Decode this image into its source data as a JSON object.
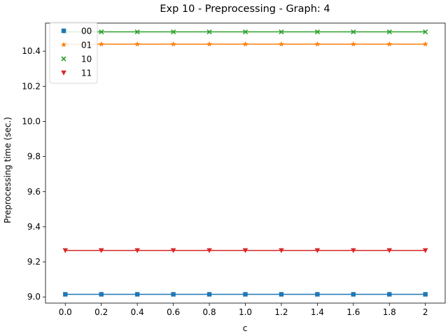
{
  "chart_data": {
    "type": "line",
    "title": "Exp 10 - Preprocessing - Graph: 4",
    "xlabel": "c",
    "ylabel": "Preprocessing time (sec.)",
    "x": [
      0.0,
      0.2,
      0.4,
      0.6,
      0.8,
      1.0,
      1.2,
      1.4,
      1.6,
      1.8,
      2.0
    ],
    "xticks": [
      0.0,
      0.2,
      0.4,
      0.6,
      0.8,
      1.0,
      1.2,
      1.4,
      1.6,
      1.8,
      2.0
    ],
    "xtick_labels": [
      "0.0",
      "0.2",
      "0.4",
      "0.6",
      "0.8",
      "1.0",
      "1.2",
      "1.4",
      "1.6",
      "1.8",
      "2"
    ],
    "yticks": [
      9.0,
      9.2,
      9.4,
      9.6,
      9.8,
      10.0,
      10.2,
      10.4
    ],
    "ytick_labels": [
      "9.0",
      "9.2",
      "9.4",
      "9.6",
      "9.8",
      "10.0",
      "10.2",
      "10.4"
    ],
    "xlim": [
      -0.11,
      2.11
    ],
    "ylim": [
      8.965,
      10.56
    ],
    "grid": false,
    "legend_position": "top-left",
    "series": [
      {
        "name": "00",
        "color": "#1f77b4",
        "marker": "square",
        "values": [
          9.015,
          9.015,
          9.015,
          9.015,
          9.015,
          9.015,
          9.015,
          9.015,
          9.015,
          9.015,
          9.015
        ]
      },
      {
        "name": "01",
        "color": "#ff7f0e",
        "marker": "star",
        "values": [
          10.44,
          10.44,
          10.44,
          10.44,
          10.44,
          10.44,
          10.44,
          10.44,
          10.44,
          10.44,
          10.44
        ]
      },
      {
        "name": "10",
        "color": "#2ca02c",
        "marker": "x",
        "values": [
          10.51,
          10.51,
          10.51,
          10.51,
          10.51,
          10.51,
          10.51,
          10.51,
          10.51,
          10.51,
          10.51
        ]
      },
      {
        "name": "11",
        "color": "#d62728",
        "marker": "triangle-down",
        "values": [
          9.265,
          9.265,
          9.265,
          9.265,
          9.265,
          9.265,
          9.265,
          9.265,
          9.265,
          9.265,
          9.265
        ]
      }
    ]
  }
}
